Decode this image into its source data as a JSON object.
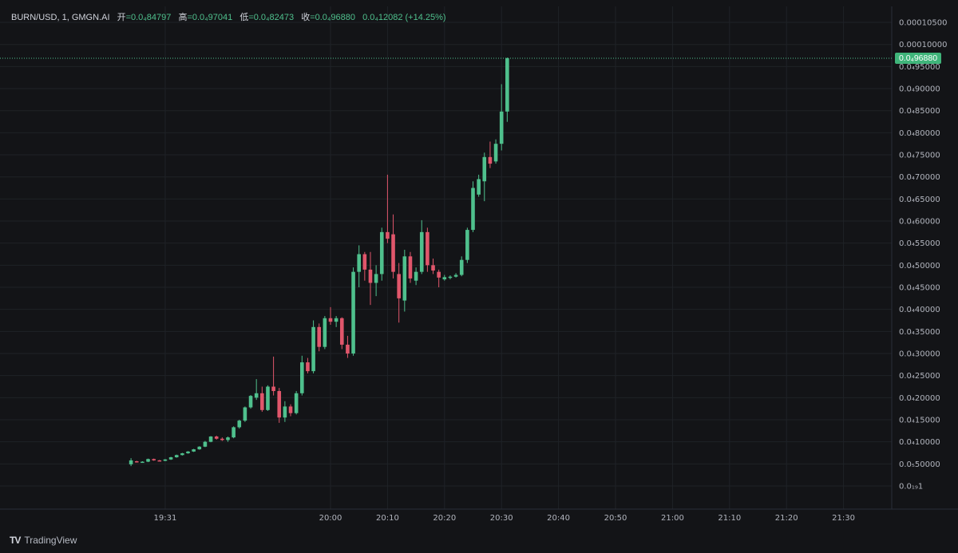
{
  "legend": {
    "symbol": "BURN/USD",
    "interval": "1",
    "source": "GMGN.AI",
    "open_label": "开",
    "open_value": "0.0₄84797",
    "high_label": "高",
    "high_value": "0.0₄97041",
    "low_label": "低",
    "low_value": "0.0₄82473",
    "close_label": "收",
    "close_value": "0.0₄96880",
    "change": "0.0₄12082 (+14.25%)"
  },
  "last_price_label": "0.0₄96880",
  "branding": {
    "logo_icon": "tradingview-logo-icon",
    "name": "TradingView"
  },
  "colors": {
    "up": "#4fc08d",
    "down": "#e0566b",
    "background": "#131417",
    "grid": "#1f2227"
  },
  "chart_data": {
    "type": "candlestick",
    "title": "BURN/USD, 1, GMGN.AI",
    "price_scale_unit": "1e-5 USD",
    "y_ticks": [
      {
        "v": 10.5,
        "label": "0.00010500"
      },
      {
        "v": 10.0,
        "label": "0.00010000"
      },
      {
        "v": 9.5,
        "label": "0.0₄95000"
      },
      {
        "v": 9.0,
        "label": "0.0₄90000"
      },
      {
        "v": 8.5,
        "label": "0.0₄85000"
      },
      {
        "v": 8.0,
        "label": "0.0₄80000"
      },
      {
        "v": 7.5,
        "label": "0.0₄75000"
      },
      {
        "v": 7.0,
        "label": "0.0₄70000"
      },
      {
        "v": 6.5,
        "label": "0.0₄65000"
      },
      {
        "v": 6.0,
        "label": "0.0₄60000"
      },
      {
        "v": 5.5,
        "label": "0.0₄55000"
      },
      {
        "v": 5.0,
        "label": "0.0₄50000"
      },
      {
        "v": 4.5,
        "label": "0.0₄45000"
      },
      {
        "v": 4.0,
        "label": "0.0₄40000"
      },
      {
        "v": 3.5,
        "label": "0.0₄35000"
      },
      {
        "v": 3.0,
        "label": "0.0₄30000"
      },
      {
        "v": 2.5,
        "label": "0.0₄25000"
      },
      {
        "v": 2.0,
        "label": "0.0₄20000"
      },
      {
        "v": 1.5,
        "label": "0.0₄15000"
      },
      {
        "v": 1.0,
        "label": "0.0₄10000"
      },
      {
        "v": 0.5,
        "label": "0.0₅50000"
      },
      {
        "v": 0.0,
        "label": "0.0₁₉1"
      }
    ],
    "x_ticks": [
      {
        "t": 31,
        "label": "19:31"
      },
      {
        "t": 60,
        "label": "20:00"
      },
      {
        "t": 70,
        "label": "20:10"
      },
      {
        "t": 80,
        "label": "20:20"
      },
      {
        "t": 90,
        "label": "20:30"
      },
      {
        "t": 100,
        "label": "20:40"
      },
      {
        "t": 110,
        "label": "20:50"
      },
      {
        "t": 120,
        "label": "21:00"
      },
      {
        "t": 130,
        "label": "21:10"
      },
      {
        "t": 140,
        "label": "21:20"
      },
      {
        "t": 150,
        "label": "21:30"
      }
    ],
    "time_unit": "minutes after 19:00",
    "last_close": 9.688,
    "candles": [
      {
        "t": 25,
        "o": 0.49,
        "h": 0.63,
        "l": 0.45,
        "c": 0.58
      },
      {
        "t": 26,
        "o": 0.56,
        "h": 0.57,
        "l": 0.53,
        "c": 0.54
      },
      {
        "t": 27,
        "o": 0.54,
        "h": 0.56,
        "l": 0.53,
        "c": 0.55
      },
      {
        "t": 28,
        "o": 0.55,
        "h": 0.62,
        "l": 0.54,
        "c": 0.61
      },
      {
        "t": 29,
        "o": 0.61,
        "h": 0.62,
        "l": 0.57,
        "c": 0.58
      },
      {
        "t": 30,
        "o": 0.58,
        "h": 0.59,
        "l": 0.56,
        "c": 0.57
      },
      {
        "t": 31,
        "o": 0.57,
        "h": 0.61,
        "l": 0.56,
        "c": 0.6
      },
      {
        "t": 32,
        "o": 0.6,
        "h": 0.66,
        "l": 0.59,
        "c": 0.65
      },
      {
        "t": 33,
        "o": 0.65,
        "h": 0.71,
        "l": 0.64,
        "c": 0.7
      },
      {
        "t": 34,
        "o": 0.7,
        "h": 0.75,
        "l": 0.69,
        "c": 0.74
      },
      {
        "t": 35,
        "o": 0.74,
        "h": 0.79,
        "l": 0.73,
        "c": 0.78
      },
      {
        "t": 36,
        "o": 0.78,
        "h": 0.84,
        "l": 0.77,
        "c": 0.83
      },
      {
        "t": 37,
        "o": 0.83,
        "h": 0.9,
        "l": 0.82,
        "c": 0.89
      },
      {
        "t": 38,
        "o": 0.89,
        "h": 1.02,
        "l": 0.88,
        "c": 1.0
      },
      {
        "t": 39,
        "o": 1.0,
        "h": 1.13,
        "l": 0.99,
        "c": 1.12
      },
      {
        "t": 40,
        "o": 1.12,
        "h": 1.14,
        "l": 1.05,
        "c": 1.07
      },
      {
        "t": 41,
        "o": 1.07,
        "h": 1.1,
        "l": 1.02,
        "c": 1.04
      },
      {
        "t": 42,
        "o": 1.04,
        "h": 1.12,
        "l": 1.0,
        "c": 1.1
      },
      {
        "t": 43,
        "o": 1.1,
        "h": 1.35,
        "l": 1.08,
        "c": 1.33
      },
      {
        "t": 44,
        "o": 1.33,
        "h": 1.5,
        "l": 1.3,
        "c": 1.48
      },
      {
        "t": 45,
        "o": 1.48,
        "h": 1.8,
        "l": 1.45,
        "c": 1.78
      },
      {
        "t": 46,
        "o": 1.78,
        "h": 2.06,
        "l": 1.75,
        "c": 2.04
      },
      {
        "t": 47,
        "o": 2.0,
        "h": 2.42,
        "l": 1.95,
        "c": 2.1
      },
      {
        "t": 48,
        "o": 2.1,
        "h": 2.25,
        "l": 1.68,
        "c": 1.72
      },
      {
        "t": 49,
        "o": 1.72,
        "h": 2.28,
        "l": 1.7,
        "c": 2.25
      },
      {
        "t": 50,
        "o": 2.25,
        "h": 2.93,
        "l": 2.05,
        "c": 2.15
      },
      {
        "t": 51,
        "o": 2.15,
        "h": 2.22,
        "l": 1.43,
        "c": 1.55
      },
      {
        "t": 52,
        "o": 1.55,
        "h": 1.92,
        "l": 1.45,
        "c": 1.8
      },
      {
        "t": 53,
        "o": 1.8,
        "h": 1.85,
        "l": 1.58,
        "c": 1.65
      },
      {
        "t": 54,
        "o": 1.65,
        "h": 2.15,
        "l": 1.62,
        "c": 2.1
      },
      {
        "t": 55,
        "o": 2.1,
        "h": 2.95,
        "l": 2.05,
        "c": 2.8
      },
      {
        "t": 56,
        "o": 2.8,
        "h": 2.9,
        "l": 2.55,
        "c": 2.6
      },
      {
        "t": 57,
        "o": 2.6,
        "h": 3.75,
        "l": 2.55,
        "c": 3.6
      },
      {
        "t": 58,
        "o": 3.6,
        "h": 3.68,
        "l": 3.05,
        "c": 3.15
      },
      {
        "t": 59,
        "o": 3.15,
        "h": 3.85,
        "l": 3.1,
        "c": 3.8
      },
      {
        "t": 60,
        "o": 3.8,
        "h": 4.05,
        "l": 3.65,
        "c": 3.72
      },
      {
        "t": 61,
        "o": 3.72,
        "h": 3.85,
        "l": 3.6,
        "c": 3.8
      },
      {
        "t": 62,
        "o": 3.8,
        "h": 3.82,
        "l": 3.1,
        "c": 3.2
      },
      {
        "t": 63,
        "o": 3.2,
        "h": 3.4,
        "l": 2.9,
        "c": 3.0
      },
      {
        "t": 64,
        "o": 3.0,
        "h": 4.95,
        "l": 2.95,
        "c": 4.85
      },
      {
        "t": 65,
        "o": 4.85,
        "h": 5.45,
        "l": 4.5,
        "c": 5.25
      },
      {
        "t": 66,
        "o": 5.25,
        "h": 5.3,
        "l": 4.65,
        "c": 4.9
      },
      {
        "t": 67,
        "o": 4.9,
        "h": 5.3,
        "l": 4.1,
        "c": 4.6
      },
      {
        "t": 68,
        "o": 4.6,
        "h": 5.0,
        "l": 4.3,
        "c": 4.8
      },
      {
        "t": 69,
        "o": 4.8,
        "h": 5.85,
        "l": 4.65,
        "c": 5.75
      },
      {
        "t": 70,
        "o": 5.75,
        "h": 7.05,
        "l": 5.5,
        "c": 5.6
      },
      {
        "t": 71,
        "o": 5.7,
        "h": 6.15,
        "l": 4.7,
        "c": 4.85
      },
      {
        "t": 72,
        "o": 4.8,
        "h": 5.05,
        "l": 3.7,
        "c": 4.25
      },
      {
        "t": 73,
        "o": 4.2,
        "h": 5.35,
        "l": 3.95,
        "c": 5.2
      },
      {
        "t": 74,
        "o": 5.2,
        "h": 5.3,
        "l": 4.6,
        "c": 4.7
      },
      {
        "t": 75,
        "o": 4.65,
        "h": 4.95,
        "l": 4.55,
        "c": 4.85
      },
      {
        "t": 76,
        "o": 4.85,
        "h": 6.02,
        "l": 4.8,
        "c": 5.75
      },
      {
        "t": 77,
        "o": 5.75,
        "h": 5.85,
        "l": 4.85,
        "c": 5.0
      },
      {
        "t": 78,
        "o": 5.0,
        "h": 5.15,
        "l": 4.8,
        "c": 4.88
      },
      {
        "t": 79,
        "o": 4.85,
        "h": 4.9,
        "l": 4.5,
        "c": 4.72
      },
      {
        "t": 80,
        "o": 4.68,
        "h": 4.78,
        "l": 4.65,
        "c": 4.73
      },
      {
        "t": 81,
        "o": 4.72,
        "h": 4.77,
        "l": 4.68,
        "c": 4.74
      },
      {
        "t": 82,
        "o": 4.74,
        "h": 4.82,
        "l": 4.72,
        "c": 4.78
      },
      {
        "t": 83,
        "o": 4.78,
        "h": 5.2,
        "l": 4.75,
        "c": 5.12
      },
      {
        "t": 84,
        "o": 5.12,
        "h": 5.85,
        "l": 5.05,
        "c": 5.8
      },
      {
        "t": 85,
        "o": 5.8,
        "h": 6.9,
        "l": 5.75,
        "c": 6.75
      },
      {
        "t": 86,
        "o": 6.6,
        "h": 7.05,
        "l": 6.55,
        "c": 6.95
      },
      {
        "t": 87,
        "o": 6.9,
        "h": 7.55,
        "l": 6.45,
        "c": 7.45
      },
      {
        "t": 88,
        "o": 7.45,
        "h": 7.8,
        "l": 7.2,
        "c": 7.3
      },
      {
        "t": 89,
        "o": 7.35,
        "h": 7.85,
        "l": 7.3,
        "c": 7.75
      },
      {
        "t": 90,
        "o": 7.75,
        "h": 9.1,
        "l": 7.6,
        "c": 8.48
      },
      {
        "t": 91,
        "o": 8.48,
        "h": 9.704,
        "l": 8.247,
        "c": 9.688
      }
    ]
  }
}
